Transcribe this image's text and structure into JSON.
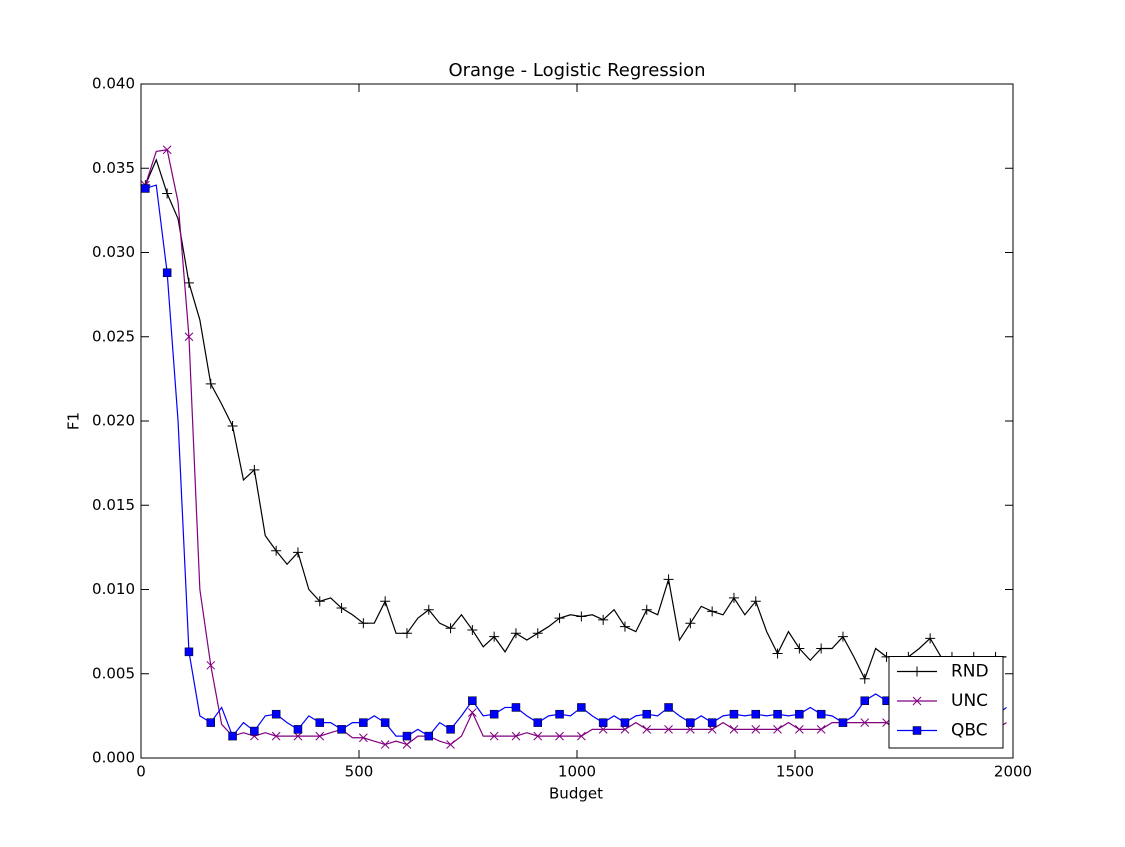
{
  "chart_data": {
    "type": "line",
    "title": "Orange - Logistic Regression",
    "xlabel": "Budget",
    "ylabel": "F1",
    "x": [
      10,
      35,
      60,
      85,
      110,
      135,
      160,
      185,
      210,
      235,
      260,
      285,
      310,
      335,
      360,
      385,
      410,
      435,
      460,
      485,
      510,
      535,
      560,
      585,
      610,
      635,
      660,
      685,
      710,
      735,
      760,
      785,
      810,
      835,
      860,
      885,
      910,
      935,
      960,
      985,
      1010,
      1035,
      1060,
      1085,
      1110,
      1135,
      1160,
      1185,
      1210,
      1235,
      1260,
      1285,
      1310,
      1335,
      1360,
      1385,
      1410,
      1435,
      1460,
      1485,
      1510,
      1535,
      1560,
      1585,
      1610,
      1635,
      1660,
      1685,
      1710,
      1735,
      1760,
      1785,
      1810,
      1835,
      1860,
      1885,
      1910,
      1935,
      1960,
      1985
    ],
    "series": [
      {
        "name": "RND",
        "color": "#000000",
        "marker": "+",
        "values": [
          0.034,
          0.0355,
          0.0335,
          0.032,
          0.0282,
          0.026,
          0.0222,
          0.021,
          0.0197,
          0.0165,
          0.0171,
          0.0132,
          0.0123,
          0.0115,
          0.0122,
          0.01,
          0.0093,
          0.0095,
          0.0089,
          0.0085,
          0.008,
          0.008,
          0.0093,
          0.0074,
          0.0074,
          0.0083,
          0.0088,
          0.008,
          0.0077,
          0.0085,
          0.0076,
          0.0066,
          0.0072,
          0.0063,
          0.0074,
          0.007,
          0.0074,
          0.0078,
          0.0083,
          0.0085,
          0.0084,
          0.0085,
          0.0082,
          0.0088,
          0.0078,
          0.0075,
          0.0088,
          0.0085,
          0.0106,
          0.007,
          0.008,
          0.009,
          0.0087,
          0.0085,
          0.0095,
          0.0085,
          0.0093,
          0.0075,
          0.0062,
          0.0075,
          0.0065,
          0.0058,
          0.0065,
          0.0065,
          0.0072,
          0.006,
          0.0047,
          0.0065,
          0.006,
          0.006,
          0.006,
          0.0065,
          0.0071,
          0.006,
          0.006,
          0.006,
          0.006,
          0.0058,
          0.006,
          0.006
        ]
      },
      {
        "name": "UNC",
        "color": "#800080",
        "marker": "x",
        "values": [
          0.034,
          0.036,
          0.0361,
          0.033,
          0.025,
          0.01,
          0.0055,
          0.002,
          0.0013,
          0.0015,
          0.0013,
          0.0015,
          0.0013,
          0.0013,
          0.0013,
          0.0013,
          0.0013,
          0.0015,
          0.0017,
          0.0012,
          0.0012,
          0.001,
          0.0008,
          0.001,
          0.0008,
          0.0013,
          0.0013,
          0.001,
          0.0008,
          0.0013,
          0.0027,
          0.0013,
          0.0013,
          0.0013,
          0.0013,
          0.0015,
          0.0013,
          0.0013,
          0.0013,
          0.0013,
          0.0013,
          0.0017,
          0.0017,
          0.0017,
          0.0017,
          0.0021,
          0.0017,
          0.0017,
          0.0017,
          0.0017,
          0.0017,
          0.0017,
          0.0017,
          0.0021,
          0.0017,
          0.0017,
          0.0017,
          0.0017,
          0.0017,
          0.0021,
          0.0017,
          0.0017,
          0.0017,
          0.0021,
          0.0021,
          0.0021,
          0.0021,
          0.0021,
          0.0021,
          0.0017,
          0.0021,
          0.0021,
          0.0021,
          0.0021,
          0.0021,
          0.0021,
          0.0021,
          0.0021,
          0.0017,
          0.0021
        ]
      },
      {
        "name": "QBC",
        "color": "#0000ff",
        "marker": "s",
        "values": [
          0.0338,
          0.034,
          0.0288,
          0.02,
          0.0063,
          0.0025,
          0.0021,
          0.003,
          0.0013,
          0.0021,
          0.0016,
          0.0025,
          0.0026,
          0.0021,
          0.0017,
          0.0025,
          0.0021,
          0.0021,
          0.0017,
          0.0021,
          0.0021,
          0.0025,
          0.0021,
          0.0013,
          0.0013,
          0.0017,
          0.0013,
          0.0021,
          0.0017,
          0.0025,
          0.0034,
          0.0025,
          0.0026,
          0.003,
          0.003,
          0.0025,
          0.0021,
          0.0025,
          0.0026,
          0.0025,
          0.003,
          0.0025,
          0.0021,
          0.0025,
          0.0021,
          0.0025,
          0.0026,
          0.0025,
          0.003,
          0.0025,
          0.0021,
          0.0025,
          0.0021,
          0.0025,
          0.0026,
          0.0025,
          0.0026,
          0.0025,
          0.0026,
          0.0025,
          0.0026,
          0.003,
          0.0026,
          0.0025,
          0.0021,
          0.0025,
          0.0034,
          0.0038,
          0.0034,
          0.003,
          0.003,
          0.003,
          0.003,
          0.0025,
          0.0025,
          0.0025,
          0.0025,
          0.0025,
          0.0025,
          0.003
        ]
      }
    ],
    "markevery": 2,
    "xlim": [
      0,
      2000
    ],
    "xticks": [
      0,
      500,
      1000,
      1500,
      2000
    ],
    "ylim": [
      0,
      0.04
    ],
    "yticks": [
      {
        "value": 0,
        "label": "0.000"
      },
      {
        "value": 0.005,
        "label": "0.005"
      },
      {
        "value": 0.01,
        "label": "0.010"
      },
      {
        "value": 0.015,
        "label": "0.015"
      },
      {
        "value": 0.02,
        "label": "0.020"
      },
      {
        "value": 0.025,
        "label": "0.025"
      },
      {
        "value": 0.03,
        "label": "0.030"
      },
      {
        "value": 0.035,
        "label": "0.035"
      },
      {
        "value": 0.04,
        "label": "0.040"
      }
    ],
    "legend": "lower right"
  }
}
